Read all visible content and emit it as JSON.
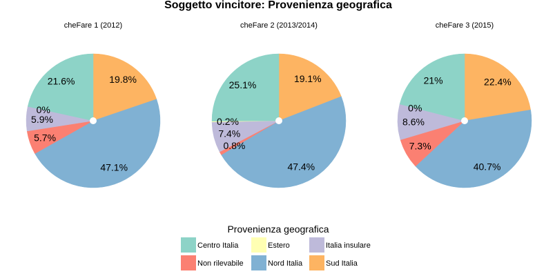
{
  "title": "Soggetto vincitore: Provenienza geografica",
  "legend": {
    "title": "Provenienza geografica",
    "placement": "bottom",
    "items": [
      {
        "label": "Centro Italia",
        "color": "#8dd3c7"
      },
      {
        "label": "Estero",
        "color": "#ffffb3"
      },
      {
        "label": "Italia insulare",
        "color": "#bebada"
      },
      {
        "label": "Non rilevabile",
        "color": "#fb8072"
      },
      {
        "label": "Nord Italia",
        "color": "#80b1d3"
      },
      {
        "label": "Sud Italia",
        "color": "#fdb462"
      }
    ]
  },
  "chart_data": [
    {
      "type": "pie",
      "title": "cheFare 1 (2012)",
      "slices": [
        {
          "name": "Sud Italia",
          "value": 19.8,
          "label": "19.8%"
        },
        {
          "name": "Nord Italia",
          "value": 47.1,
          "label": "47.1%"
        },
        {
          "name": "Non rilevabile",
          "value": 5.7,
          "label": "5.7%"
        },
        {
          "name": "Italia insulare",
          "value": 5.9,
          "label": "5.9%"
        },
        {
          "name": "Estero",
          "value": 0,
          "label": "0%"
        },
        {
          "name": "Centro Italia",
          "value": 21.6,
          "label": "21.6%"
        }
      ]
    },
    {
      "type": "pie",
      "title": "cheFare 2 (2013/2014)",
      "slices": [
        {
          "name": "Sud Italia",
          "value": 19.1,
          "label": "19.1%"
        },
        {
          "name": "Nord Italia",
          "value": 47.4,
          "label": "47.4%"
        },
        {
          "name": "Non rilevabile",
          "value": 0.8,
          "label": "0.8%"
        },
        {
          "name": "Italia insulare",
          "value": 7.4,
          "label": "7.4%"
        },
        {
          "name": "Estero",
          "value": 0.2,
          "label": "0.2%"
        },
        {
          "name": "Centro Italia",
          "value": 25.1,
          "label": "25.1%"
        }
      ]
    },
    {
      "type": "pie",
      "title": "cheFare 3 (2015)",
      "slices": [
        {
          "name": "Sud Italia",
          "value": 22.4,
          "label": "22.4%"
        },
        {
          "name": "Nord Italia",
          "value": 40.7,
          "label": "40.7%"
        },
        {
          "name": "Non rilevabile",
          "value": 7.3,
          "label": "7.3%"
        },
        {
          "name": "Italia insulare",
          "value": 8.6,
          "label": "8.6%"
        },
        {
          "name": "Estero",
          "value": 0,
          "label": "0%"
        },
        {
          "name": "Centro Italia",
          "value": 21,
          "label": "21%"
        }
      ]
    }
  ]
}
